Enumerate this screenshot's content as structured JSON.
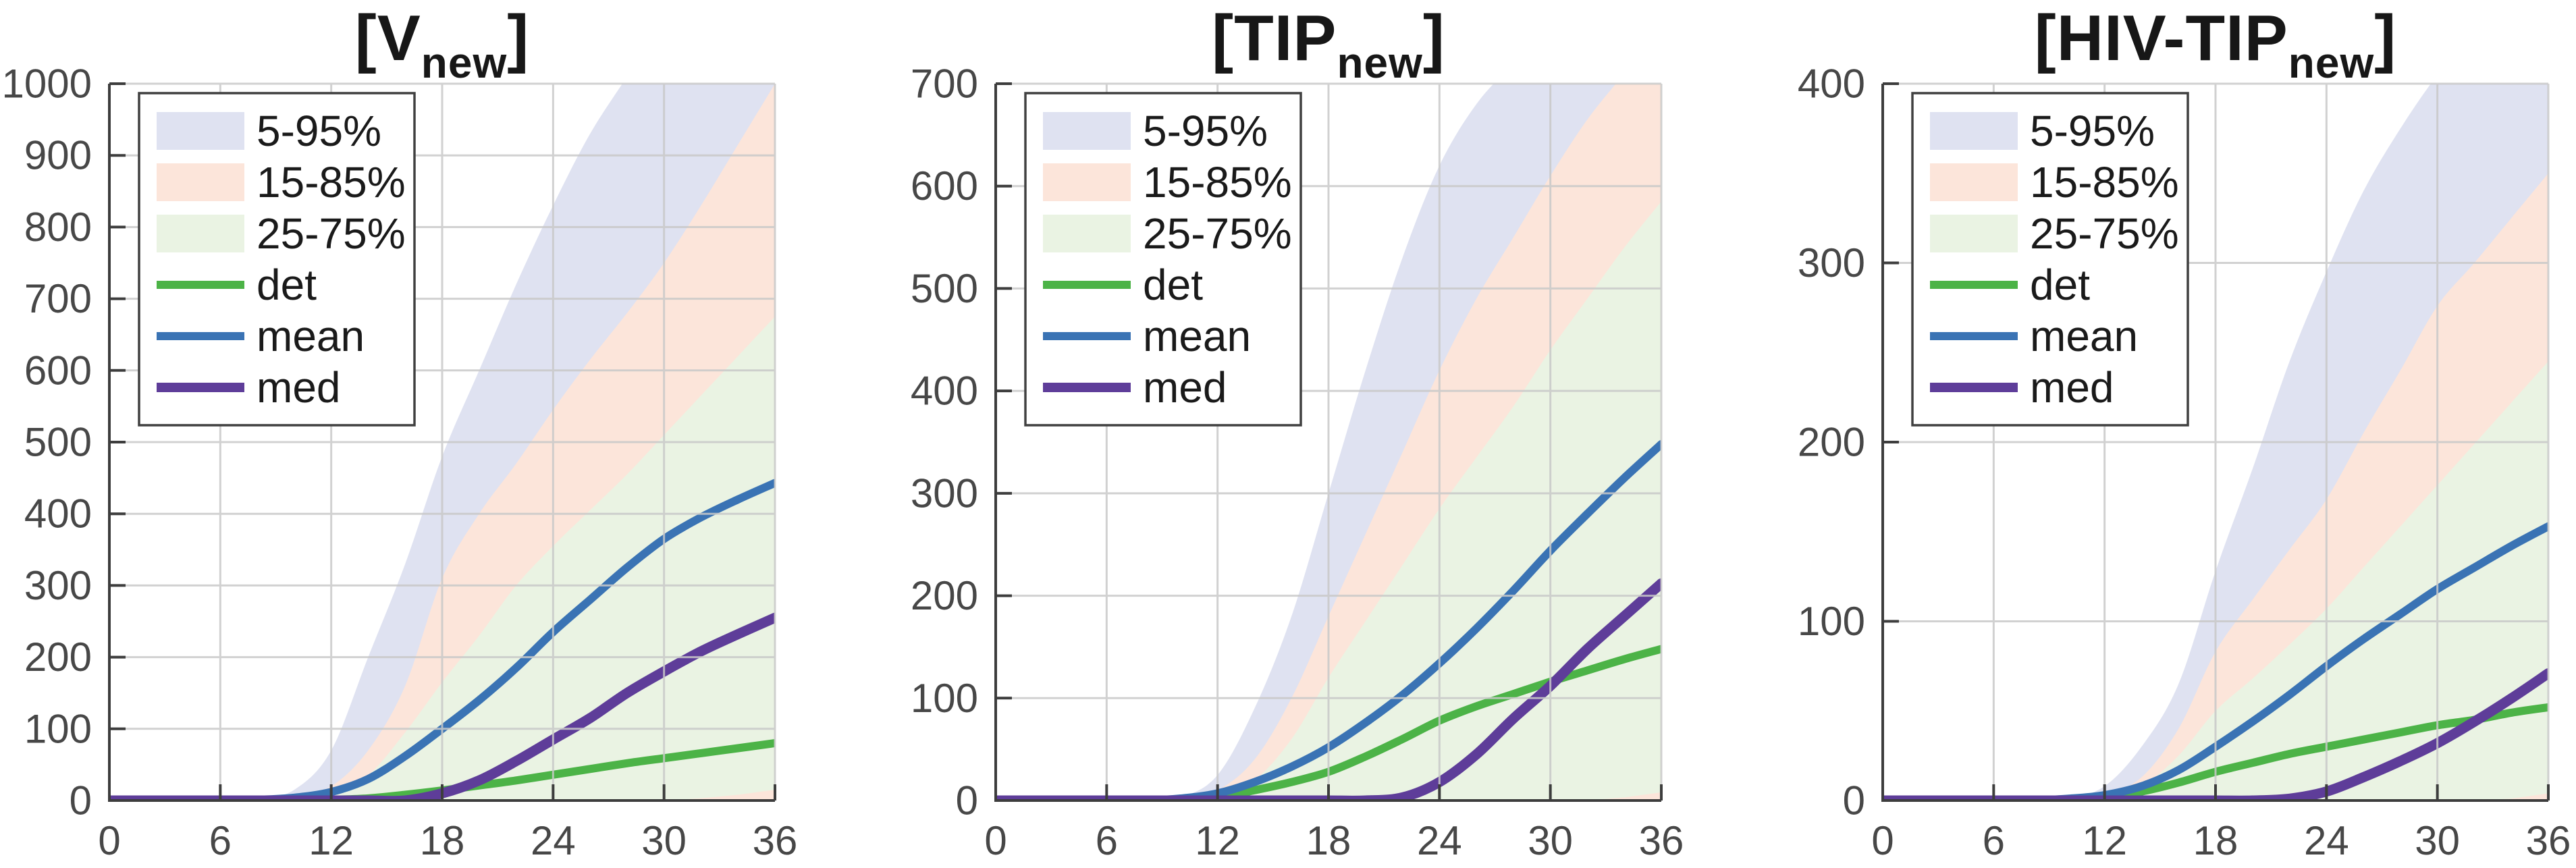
{
  "figure": {
    "background": "#ffffff",
    "axis_color": "#3d3d3d",
    "tick_label_color": "#474747",
    "grid_color": "#c9c9c9"
  },
  "legend": {
    "position": "top-left",
    "border_color": "#404040",
    "items": [
      {
        "label": "5-95%",
        "type": "patch",
        "color": "#dfe2f1"
      },
      {
        "label": "15-85%",
        "type": "patch",
        "color": "#fce5da"
      },
      {
        "label": "25-75%",
        "type": "patch",
        "color": "#eaf3e3"
      },
      {
        "label": "det",
        "type": "line",
        "color": "#4cb347"
      },
      {
        "label": "mean",
        "type": "line",
        "color": "#3a73b4"
      },
      {
        "label": "med",
        "type": "line",
        "color": "#5e3d99"
      }
    ]
  },
  "chart_data": [
    {
      "id": "v-new",
      "type": "line",
      "title_main": "[V",
      "title_sub": "new",
      "title_close": "]",
      "xlim": [
        0,
        36
      ],
      "ylim": [
        0,
        1000
      ],
      "xticks": [
        0,
        6,
        12,
        18,
        24,
        30,
        36
      ],
      "yticks": [
        0,
        100,
        200,
        300,
        400,
        500,
        600,
        700,
        800,
        900,
        1000
      ],
      "grid": true,
      "x": [
        0,
        2,
        4,
        6,
        8,
        10,
        12,
        14,
        16,
        18,
        20,
        22,
        24,
        26,
        28,
        30,
        32,
        34,
        36
      ],
      "bands": [
        {
          "name": "5-95%",
          "fill": "#dfe2f1",
          "upper": [
            0,
            0,
            0,
            0,
            2,
            15,
            70,
            200,
            330,
            480,
            600,
            720,
            830,
            930,
            1010,
            1090,
            1170,
            1250,
            1330
          ],
          "lower": [
            0,
            0,
            0,
            0,
            0,
            0,
            0,
            0,
            0,
            0,
            0,
            0,
            0,
            0,
            0,
            0,
            0,
            0,
            0
          ]
        },
        {
          "name": "15-85%",
          "fill": "#fce5da",
          "upper": [
            0,
            0,
            0,
            0,
            1,
            5,
            20,
            70,
            160,
            310,
            400,
            470,
            545,
            615,
            680,
            750,
            830,
            915,
            1000
          ],
          "lower": [
            0,
            0,
            0,
            0,
            0,
            0,
            0,
            0,
            0,
            0,
            0,
            0,
            0,
            0,
            0,
            0,
            0,
            0,
            0
          ]
        },
        {
          "name": "25-75%",
          "fill": "#eaf3e3",
          "upper": [
            0,
            0,
            0,
            0,
            0,
            2,
            8,
            35,
            95,
            165,
            230,
            300,
            355,
            405,
            455,
            510,
            565,
            620,
            675
          ],
          "lower": [
            0,
            0,
            0,
            0,
            0,
            0,
            0,
            0,
            0,
            0,
            0,
            0,
            0,
            0,
            0,
            0,
            3,
            8,
            15
          ]
        }
      ],
      "series": [
        {
          "name": "det",
          "color": "#4cb347",
          "width": 12,
          "values": [
            0,
            0,
            0,
            0,
            0,
            0,
            1,
            3,
            8,
            14,
            21,
            28,
            36,
            44,
            52,
            59,
            66,
            73,
            80
          ]
        },
        {
          "name": "mean",
          "color": "#3a73b4",
          "width": 12,
          "values": [
            0,
            0,
            0,
            0,
            1,
            4,
            12,
            30,
            62,
            100,
            140,
            185,
            235,
            280,
            325,
            365,
            395,
            420,
            443
          ]
        },
        {
          "name": "med",
          "color": "#5e3d99",
          "width": 15,
          "values": [
            0,
            0,
            0,
            0,
            0,
            0,
            0,
            0,
            0,
            10,
            28,
            55,
            85,
            115,
            150,
            180,
            208,
            232,
            255
          ]
        }
      ]
    },
    {
      "id": "tip-new",
      "type": "line",
      "title_main": "[TIP",
      "title_sub": "new",
      "title_close": "]",
      "xlim": [
        0,
        36
      ],
      "ylim": [
        0,
        700
      ],
      "xticks": [
        0,
        6,
        12,
        18,
        24,
        30,
        36
      ],
      "yticks": [
        0,
        100,
        200,
        300,
        400,
        500,
        600,
        700
      ],
      "grid": true,
      "x": [
        0,
        2,
        4,
        6,
        8,
        10,
        12,
        14,
        16,
        18,
        20,
        22,
        24,
        26,
        28,
        30,
        32,
        34,
        36
      ],
      "bands": [
        {
          "name": "5-95%",
          "fill": "#dfe2f1",
          "upper": [
            0,
            0,
            0,
            0,
            0,
            3,
            25,
            90,
            180,
            300,
            420,
            530,
            620,
            680,
            720,
            760,
            800,
            840,
            880
          ],
          "lower": [
            0,
            0,
            0,
            0,
            0,
            0,
            0,
            0,
            0,
            0,
            0,
            0,
            0,
            0,
            0,
            0,
            0,
            0,
            0
          ]
        },
        {
          "name": "15-85%",
          "fill": "#fce5da",
          "upper": [
            0,
            0,
            0,
            0,
            0,
            1,
            10,
            40,
            100,
            180,
            260,
            340,
            420,
            490,
            550,
            610,
            665,
            710,
            755
          ],
          "lower": [
            0,
            0,
            0,
            0,
            0,
            0,
            0,
            0,
            0,
            0,
            0,
            0,
            0,
            0,
            0,
            0,
            0,
            0,
            0
          ]
        },
        {
          "name": "25-75%",
          "fill": "#eaf3e3",
          "upper": [
            0,
            0,
            0,
            0,
            0,
            0,
            5,
            20,
            60,
            120,
            175,
            230,
            285,
            335,
            385,
            440,
            490,
            540,
            585
          ],
          "lower": [
            0,
            0,
            0,
            0,
            0,
            0,
            0,
            0,
            0,
            0,
            0,
            0,
            0,
            0,
            0,
            0,
            0,
            3,
            8
          ]
        }
      ],
      "series": [
        {
          "name": "det",
          "color": "#4cb347",
          "width": 12,
          "values": [
            0,
            0,
            0,
            0,
            0,
            0,
            3,
            10,
            18,
            28,
            43,
            60,
            78,
            92,
            104,
            116,
            127,
            138,
            148
          ]
        },
        {
          "name": "mean",
          "color": "#3a73b4",
          "width": 12,
          "values": [
            0,
            0,
            0,
            0,
            0,
            2,
            7,
            18,
            33,
            52,
            76,
            103,
            134,
            168,
            205,
            244,
            280,
            315,
            348
          ]
        },
        {
          "name": "med",
          "color": "#5e3d99",
          "width": 15,
          "values": [
            0,
            0,
            0,
            0,
            0,
            0,
            0,
            0,
            0,
            0,
            0,
            3,
            18,
            45,
            80,
            112,
            148,
            180,
            212
          ]
        }
      ]
    },
    {
      "id": "hiv-tip-new",
      "type": "line",
      "title_main": "[HIV-TIP",
      "title_sub": "new",
      "title_close": "]",
      "xlim": [
        0,
        36
      ],
      "ylim": [
        0,
        400
      ],
      "xticks": [
        0,
        6,
        12,
        18,
        24,
        30,
        36
      ],
      "yticks": [
        0,
        100,
        200,
        300,
        400
      ],
      "grid": true,
      "x": [
        0,
        2,
        4,
        6,
        8,
        10,
        12,
        14,
        16,
        18,
        20,
        22,
        24,
        26,
        28,
        30,
        32,
        34,
        36
      ],
      "bands": [
        {
          "name": "5-95%",
          "fill": "#dfe2f1",
          "upper": [
            0,
            0,
            0,
            0,
            0,
            1,
            8,
            30,
            65,
            128,
            185,
            245,
            295,
            340,
            375,
            405,
            430,
            460,
            490
          ],
          "lower": [
            0,
            0,
            0,
            0,
            0,
            0,
            0,
            0,
            0,
            0,
            0,
            0,
            0,
            0,
            0,
            0,
            0,
            0,
            0
          ]
        },
        {
          "name": "15-85%",
          "fill": "#fce5da",
          "upper": [
            0,
            0,
            0,
            0,
            0,
            0,
            3,
            13,
            40,
            83,
            112,
            140,
            168,
            205,
            240,
            276,
            300,
            325,
            350
          ],
          "lower": [
            0,
            0,
            0,
            0,
            0,
            0,
            0,
            0,
            0,
            0,
            0,
            0,
            0,
            0,
            0,
            0,
            0,
            0,
            0
          ]
        },
        {
          "name": "25-75%",
          "fill": "#eaf3e3",
          "upper": [
            0,
            0,
            0,
            0,
            0,
            0,
            2,
            8,
            25,
            50,
            68,
            87,
            107,
            130,
            153,
            176,
            199,
            222,
            245
          ],
          "lower": [
            0,
            0,
            0,
            0,
            0,
            0,
            0,
            0,
            0,
            0,
            0,
            0,
            0,
            0,
            0,
            0,
            0,
            1,
            4
          ]
        }
      ],
      "series": [
        {
          "name": "det",
          "color": "#4cb347",
          "width": 12,
          "values": [
            0,
            0,
            0,
            0,
            0,
            0,
            2,
            5,
            10,
            16,
            21,
            26,
            30,
            34,
            38,
            42,
            45,
            49,
            52
          ]
        },
        {
          "name": "mean",
          "color": "#3a73b4",
          "width": 12,
          "values": [
            0,
            0,
            0,
            0,
            0,
            1,
            3,
            8,
            17,
            30,
            44,
            59,
            75,
            90,
            104,
            118,
            130,
            142,
            153
          ]
        },
        {
          "name": "med",
          "color": "#5e3d99",
          "width": 15,
          "values": [
            0,
            0,
            0,
            0,
            0,
            0,
            0,
            0,
            0,
            0,
            0,
            1,
            5,
            13,
            22,
            32,
            44,
            57,
            71
          ]
        }
      ]
    }
  ]
}
